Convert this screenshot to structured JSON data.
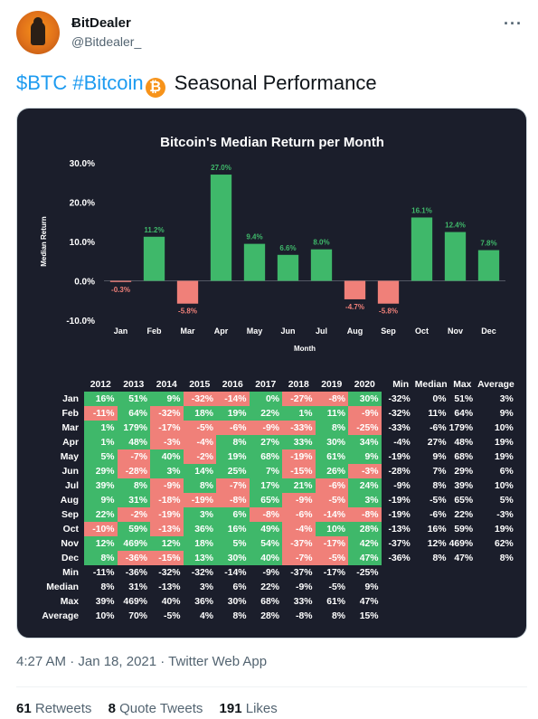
{
  "user": {
    "name": "ɃitDealer",
    "handle": "@Bitdealer_",
    "more": "···"
  },
  "tweet": {
    "tag1": "$BTC",
    "tag2": "#Bitcoin",
    "emoji": "₿",
    "text": "Seasonal Performance"
  },
  "meta": "4:27 AM · Jan 18, 2021 · Twitter Web App",
  "stats": {
    "retweets_count": "61",
    "retweets_label": "Retweets",
    "quotes_count": "8",
    "quotes_label": "Quote Tweets",
    "likes_count": "191",
    "likes_label": "Likes"
  },
  "colors": {
    "positive": "#3fb86a",
    "negative": "#f08079",
    "card_bg": "#1b1e2b",
    "link": "#1d9bf0"
  },
  "chart_data": [
    {
      "type": "bar",
      "title": "Bitcoin's Median Return per Month",
      "xlabel": "Month",
      "ylabel": "Median Return",
      "categories": [
        "Jan",
        "Feb",
        "Mar",
        "Apr",
        "May",
        "Jun",
        "Jul",
        "Aug",
        "Sep",
        "Oct",
        "Nov",
        "Dec"
      ],
      "values": [
        -0.3,
        11.2,
        -5.8,
        27.0,
        9.4,
        6.6,
        8.0,
        -4.7,
        -5.8,
        16.1,
        12.4,
        7.8
      ],
      "data_labels": [
        "-0.3%",
        "11.2%",
        "-5.8%",
        "27.0%",
        "9.4%",
        "6.6%",
        "8.0%",
        "-4.7%",
        "-5.8%",
        "16.1%",
        "12.4%",
        "7.8%"
      ],
      "yticks": [
        -10,
        0,
        10,
        20,
        30
      ],
      "ytick_labels": [
        "-10.0%",
        "0.0%",
        "10.0%",
        "20.0%",
        "30.0%"
      ],
      "ylim": [
        -10,
        30
      ],
      "grid": false
    },
    {
      "type": "table",
      "columns": [
        "2012",
        "2013",
        "2014",
        "2015",
        "2016",
        "2017",
        "2018",
        "2019",
        "2020"
      ],
      "stat_columns": [
        "Min",
        "Median",
        "Max",
        "Average"
      ],
      "rows": [
        {
          "label": "Jan",
          "values": [
            16,
            51,
            9,
            -32,
            -14,
            0,
            -27,
            -8,
            30
          ],
          "stats": [
            "-32%",
            "0%",
            "51%",
            "3%"
          ]
        },
        {
          "label": "Feb",
          "values": [
            -11,
            64,
            -32,
            18,
            19,
            22,
            1,
            11,
            -9
          ],
          "stats": [
            "-32%",
            "11%",
            "64%",
            "9%"
          ]
        },
        {
          "label": "Mar",
          "values": [
            1,
            179,
            -17,
            -5,
            -6,
            -9,
            -33,
            8,
            -25
          ],
          "stats": [
            "-33%",
            "-6%",
            "179%",
            "10%"
          ]
        },
        {
          "label": "Apr",
          "values": [
            1,
            48,
            -3,
            -4,
            8,
            27,
            33,
            30,
            34
          ],
          "stats": [
            "-4%",
            "27%",
            "48%",
            "19%"
          ]
        },
        {
          "label": "May",
          "values": [
            5,
            -7,
            40,
            -2,
            19,
            68,
            -19,
            61,
            9
          ],
          "stats": [
            "-19%",
            "9%",
            "68%",
            "19%"
          ]
        },
        {
          "label": "Jun",
          "values": [
            29,
            -28,
            3,
            14,
            25,
            7,
            -15,
            26,
            -3
          ],
          "stats": [
            "-28%",
            "7%",
            "29%",
            "6%"
          ]
        },
        {
          "label": "Jul",
          "values": [
            39,
            8,
            -9,
            8,
            -7,
            17,
            21,
            -6,
            24
          ],
          "stats": [
            "-9%",
            "8%",
            "39%",
            "10%"
          ]
        },
        {
          "label": "Aug",
          "values": [
            9,
            31,
            -18,
            -19,
            -8,
            65,
            -9,
            -5,
            3
          ],
          "stats": [
            "-19%",
            "-5%",
            "65%",
            "5%"
          ]
        },
        {
          "label": "Sep",
          "values": [
            22,
            -2,
            -19,
            3,
            6,
            -8,
            -6,
            -14,
            -8
          ],
          "stats": [
            "-19%",
            "-6%",
            "22%",
            "-3%"
          ]
        },
        {
          "label": "Oct",
          "values": [
            -10,
            59,
            -13,
            36,
            16,
            49,
            -4,
            10,
            28
          ],
          "stats": [
            "-13%",
            "16%",
            "59%",
            "19%"
          ]
        },
        {
          "label": "Nov",
          "values": [
            12,
            469,
            12,
            18,
            5,
            54,
            -37,
            -17,
            42
          ],
          "stats": [
            "-37%",
            "12%",
            "469%",
            "62%"
          ]
        },
        {
          "label": "Dec",
          "values": [
            8,
            -36,
            -15,
            13,
            30,
            40,
            -7,
            -5,
            47
          ],
          "stats": [
            "-36%",
            "8%",
            "47%",
            "8%"
          ]
        }
      ],
      "summary_rows": [
        {
          "label": "Min",
          "values": [
            "-11%",
            "-36%",
            "-32%",
            "-32%",
            "-14%",
            "-9%",
            "-37%",
            "-17%",
            "-25%"
          ]
        },
        {
          "label": "Median",
          "values": [
            "8%",
            "31%",
            "-13%",
            "3%",
            "6%",
            "22%",
            "-9%",
            "-5%",
            "9%"
          ]
        },
        {
          "label": "Max",
          "values": [
            "39%",
            "469%",
            "40%",
            "36%",
            "30%",
            "68%",
            "33%",
            "61%",
            "47%"
          ]
        },
        {
          "label": "Average",
          "values": [
            "10%",
            "70%",
            "-5%",
            "4%",
            "8%",
            "28%",
            "-8%",
            "8%",
            "15%"
          ]
        }
      ]
    }
  ]
}
